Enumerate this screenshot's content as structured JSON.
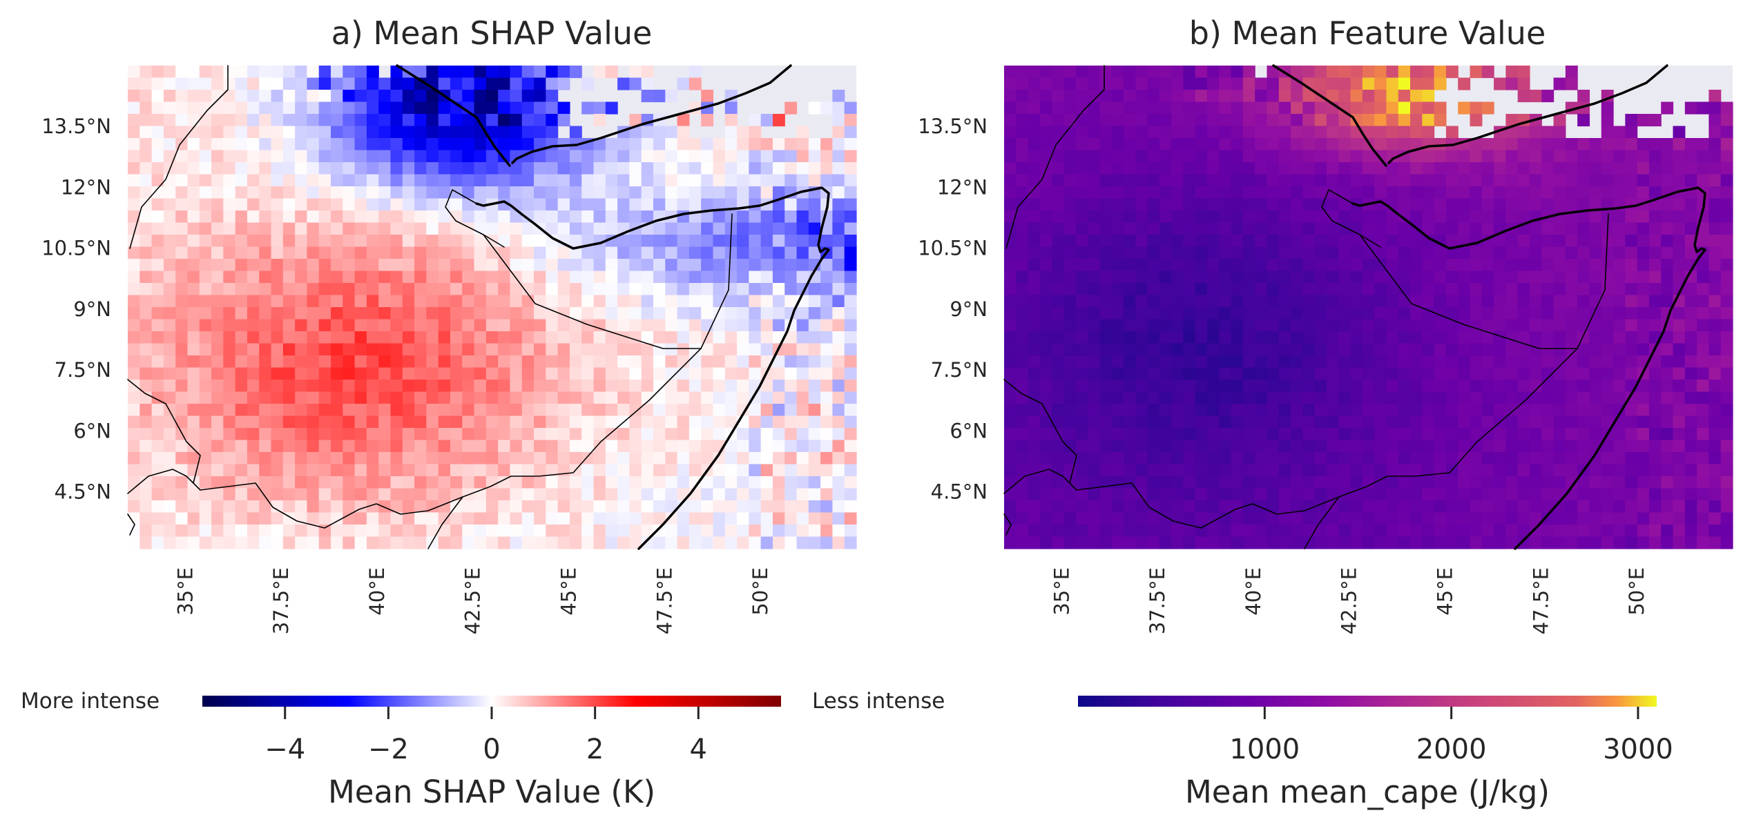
{
  "panels": [
    {
      "title": "a) Mean SHAP Value",
      "colormap": "seismic",
      "colorbar": {
        "label": "Mean SHAP Value (K)",
        "ticks": [
          "−4",
          "−2",
          "0",
          "2",
          "4"
        ],
        "tick_values": [
          -4,
          -2,
          0,
          2,
          4
        ],
        "range": [
          -5.6,
          5.6
        ],
        "left_note": "More intense",
        "right_note": "Less intense"
      }
    },
    {
      "title": "b) Mean Feature Value",
      "colormap": "plasma",
      "colorbar": {
        "label": "Mean mean_cape (J/kg)",
        "ticks": [
          "1000",
          "2000",
          "3000"
        ],
        "tick_values": [
          1000,
          2000,
          3000
        ],
        "range": [
          0,
          3100
        ]
      }
    }
  ],
  "lat_ticks": [
    "13.5°N",
    "12°N",
    "10.5°N",
    "9°N",
    "7.5°N",
    "6°N",
    "4.5°N"
  ],
  "lat_values": [
    13.5,
    12,
    10.5,
    9,
    7.5,
    6,
    4.5
  ],
  "lon_ticks": [
    "35°E",
    "37.5°E",
    "40°E",
    "42.5°E",
    "45°E",
    "47.5°E",
    "50°E"
  ],
  "lon_values": [
    35,
    37.5,
    40,
    42.5,
    45,
    47.5,
    50
  ],
  "extent": {
    "lon": [
      33.5,
      52.5
    ],
    "lat": [
      3.1,
      15.0
    ]
  },
  "colors": {
    "missing": "#eaeaf2",
    "coast": "#000000"
  }
}
